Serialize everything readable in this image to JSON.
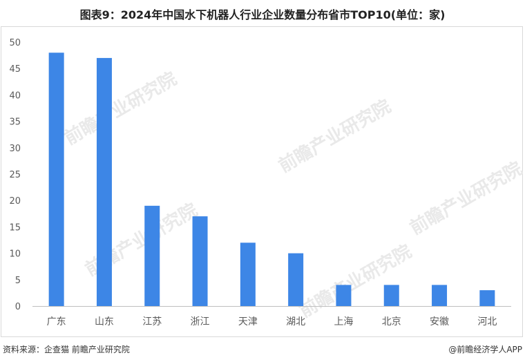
{
  "title": "图表9：2024年中国水下机器人行业企业数量分布省市TOP10(单位：家)",
  "footer": {
    "source": "资料来源：企查猫 前瞻产业研究院",
    "credit": "@前瞻经济学人APP"
  },
  "watermark": {
    "text": "前瞻产业研究院"
  },
  "colors": {
    "bar": "#3d86e6",
    "axis": "#bfbfbf",
    "tick_text": "#595959"
  },
  "chart_data": {
    "type": "bar",
    "title": "图表9：2024年中国水下机器人行业企业数量分布省市TOP10(单位：家)",
    "categories": [
      "广东",
      "山东",
      "江苏",
      "浙江",
      "天津",
      "湖北",
      "上海",
      "北京",
      "安徽",
      "河北"
    ],
    "values": [
      48,
      47,
      19,
      17,
      12,
      10,
      4,
      4,
      4,
      3
    ],
    "ylim": [
      0,
      50
    ],
    "yticks": [
      0,
      5,
      10,
      15,
      20,
      25,
      30,
      35,
      40,
      45,
      50
    ],
    "xlabel": "",
    "ylabel": "",
    "grid": false,
    "legend": "none"
  }
}
